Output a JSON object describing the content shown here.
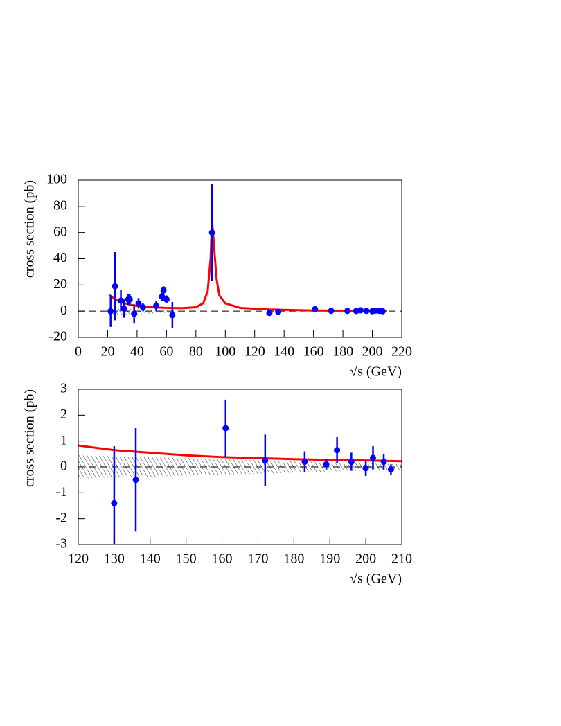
{
  "chart_data": [
    {
      "type": "scatter",
      "xlabel": "√s (GeV)",
      "ylabel": "cross section (pb)",
      "xlim": [
        0,
        220
      ],
      "ylim": [
        -20,
        100
      ],
      "xticks": [
        0,
        20,
        40,
        60,
        80,
        100,
        120,
        140,
        160,
        180,
        200,
        220
      ],
      "yticks": [
        -20,
        0,
        20,
        40,
        60,
        80,
        100
      ],
      "hline": 0,
      "points": {
        "color": "#0000ff",
        "x": [
          22,
          25,
          29,
          31,
          34,
          35,
          38,
          41,
          44,
          53,
          57,
          58,
          60,
          64,
          91,
          130,
          136,
          161,
          172,
          183,
          189,
          192,
          196,
          200,
          202,
          205,
          207
        ],
        "values": [
          0,
          19,
          8,
          2,
          9,
          9,
          -2,
          6,
          3,
          4,
          11,
          16,
          9,
          -3,
          60,
          -1.4,
          -0.5,
          1.5,
          0.25,
          0.2,
          0.1,
          0.65,
          0.2,
          -0.05,
          0.35,
          0.2,
          -0.1
        ],
        "errors": [
          12,
          26,
          8,
          7,
          4,
          4,
          7,
          4,
          3,
          4,
          3,
          3,
          3,
          10,
          37,
          2.2,
          2,
          1.1,
          1,
          0.4,
          0.2,
          0.5,
          0.35,
          0.3,
          0.45,
          0.3,
          0.2
        ]
      },
      "curve": {
        "color": "#ff0000",
        "x": [
          21,
          25,
          30,
          35,
          40,
          50,
          60,
          70,
          80,
          85,
          88,
          90,
          91,
          92,
          94,
          96,
          100,
          110,
          130,
          160,
          210
        ],
        "values": [
          12.5,
          9,
          6.5,
          5,
          4,
          3,
          2.5,
          2.3,
          3,
          6,
          15,
          40,
          69,
          55,
          25,
          12,
          6,
          2.5,
          1.3,
          0.5,
          0.25
        ]
      },
      "band": {
        "x": [
          21,
          40,
          66
        ],
        "upper": [
          3,
          1.5,
          0.5
        ],
        "lower": [
          -4,
          -2.5,
          -1
        ]
      }
    },
    {
      "type": "scatter",
      "xlabel": "√s (GeV)",
      "ylabel": "cross section (pb)",
      "xlim": [
        120,
        210
      ],
      "ylim": [
        -3,
        3
      ],
      "xticks": [
        120,
        130,
        140,
        150,
        160,
        170,
        180,
        190,
        200,
        210
      ],
      "yticks": [
        -3,
        -2,
        -1,
        0,
        1,
        2,
        3
      ],
      "hline": 0,
      "points": {
        "color": "#0000ff",
        "x": [
          130,
          136,
          161,
          172,
          183,
          189,
          192,
          196,
          200,
          202,
          205,
          207
        ],
        "values": [
          -1.4,
          -0.5,
          1.5,
          0.25,
          0.2,
          0.1,
          0.65,
          0.2,
          -0.05,
          0.35,
          0.2,
          -0.1
        ],
        "errors": [
          2.2,
          2,
          1.1,
          1,
          0.4,
          0.2,
          0.5,
          0.35,
          0.3,
          0.45,
          0.3,
          0.2
        ]
      },
      "curve": {
        "color": "#ff0000",
        "x": [
          120,
          130,
          140,
          150,
          160,
          170,
          180,
          190,
          200,
          210
        ],
        "values": [
          0.83,
          0.65,
          0.55,
          0.45,
          0.38,
          0.34,
          0.3,
          0.27,
          0.25,
          0.22
        ]
      },
      "band": {
        "x": [
          120,
          165,
          210
        ],
        "upper": [
          0.45,
          0.28,
          0.1
        ],
        "lower": [
          -0.45,
          -0.28,
          -0.1
        ]
      }
    }
  ]
}
